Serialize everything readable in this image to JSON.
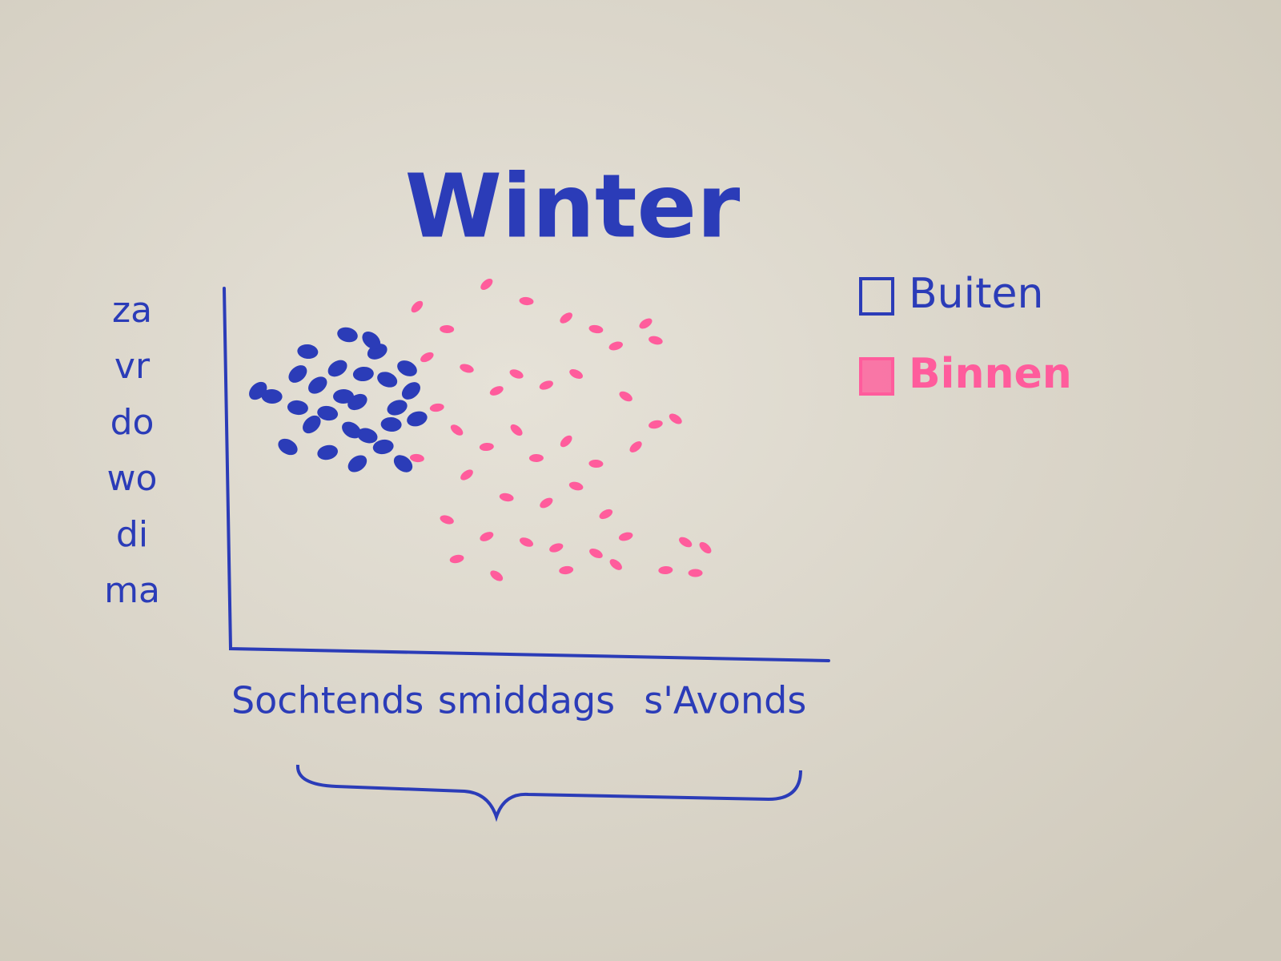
{
  "chart_data": {
    "type": "scatter",
    "title": "Winter",
    "xlim": [
      0,
      3
    ],
    "xticks": [
      {
        "value": 0.5,
        "label": "Sochtends"
      },
      {
        "value": 1.5,
        "label": "smiddags"
      },
      {
        "value": 2.5,
        "label": "s'Avonds"
      }
    ],
    "ylim": [
      0,
      6.5
    ],
    "yticks": [
      {
        "value": 1,
        "label": "ma"
      },
      {
        "value": 2,
        "label": "di"
      },
      {
        "value": 3,
        "label": "wo"
      },
      {
        "value": 4,
        "label": "do"
      },
      {
        "value": 5,
        "label": "vr"
      },
      {
        "value": 6,
        "label": "za"
      }
    ],
    "legend": "right",
    "series": [
      {
        "name": "Buiten",
        "color": "#2b3cb8",
        "x": [
          0.15,
          0.22,
          0.35,
          0.4,
          0.45,
          0.5,
          0.55,
          0.6,
          0.65,
          0.7,
          0.75,
          0.8,
          0.85,
          0.9,
          0.95,
          0.3,
          0.5,
          0.62,
          0.78,
          0.88,
          0.68,
          0.72,
          0.58,
          0.42,
          0.82,
          0.92,
          0.35,
          0.65
        ],
        "y": [
          4.6,
          4.5,
          4.9,
          5.3,
          4.7,
          4.2,
          5.0,
          5.6,
          4.4,
          3.8,
          5.3,
          4.8,
          4.3,
          5.0,
          4.1,
          3.6,
          3.5,
          3.9,
          3.6,
          3.3,
          4.9,
          5.5,
          4.5,
          4.0,
          4.0,
          4.6,
          4.3,
          3.3
        ]
      },
      {
        "name": "Binnen",
        "color": "#ff5c9c",
        "x": [
          0.95,
          1.1,
          1.3,
          1.5,
          1.7,
          1.85,
          2.1,
          2.15,
          1.0,
          1.2,
          1.35,
          1.45,
          1.6,
          1.75,
          1.95,
          2.0,
          2.15,
          2.25,
          1.05,
          1.15,
          1.3,
          1.45,
          1.55,
          1.7,
          1.85,
          2.05,
          0.95,
          1.2,
          1.4,
          1.6,
          1.75,
          1.9,
          1.1,
          1.3,
          1.5,
          1.65,
          1.85,
          2.0,
          2.3,
          1.15,
          1.35,
          1.7,
          1.95,
          2.2,
          2.4,
          2.35
        ],
        "y": [
          6.1,
          5.7,
          6.5,
          6.2,
          5.9,
          5.7,
          5.8,
          5.5,
          5.2,
          5.0,
          4.6,
          4.9,
          4.7,
          4.9,
          5.4,
          4.5,
          4.0,
          4.1,
          4.3,
          3.9,
          3.6,
          3.9,
          3.4,
          3.7,
          3.3,
          3.6,
          3.4,
          3.1,
          2.7,
          2.6,
          2.9,
          2.4,
          2.3,
          2.0,
          1.9,
          1.8,
          1.7,
          2.0,
          1.9,
          1.6,
          1.3,
          1.4,
          1.5,
          1.4,
          1.8,
          1.35
        ]
      }
    ]
  }
}
